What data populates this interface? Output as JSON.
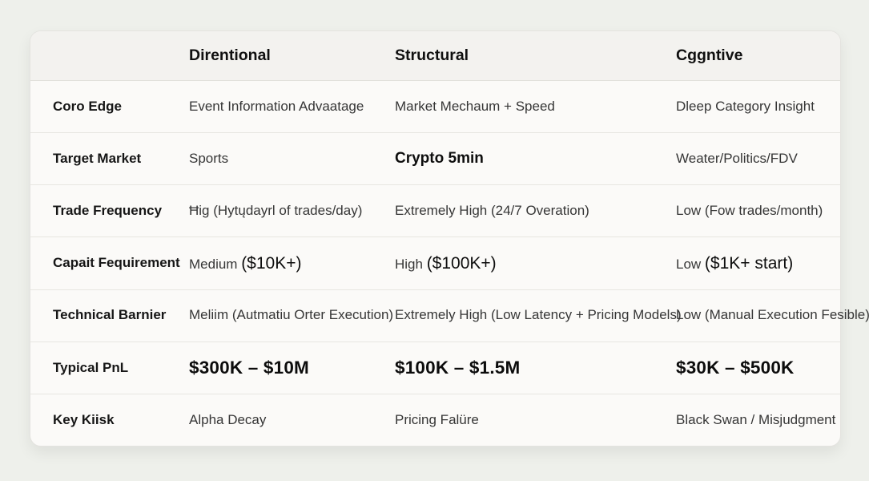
{
  "colors": {
    "page_bg": "#eef0eb",
    "card_bg": "#fbfaf8",
    "header_bg": "#f3f2ef",
    "border": "#e4e3df",
    "label_text": "#161616",
    "cell_text": "#363636"
  },
  "chart_data": {
    "type": "table",
    "title": "",
    "columns": [
      "",
      "Direntional",
      "Structural",
      "Cggntive"
    ],
    "rows": [
      [
        "Coro Edge",
        "Event Information Advaatage",
        "Market Mechaum + Speed",
        "Dleep Category Insight"
      ],
      [
        "Target Market",
        "Sports",
        "Crypto 5min",
        "Weater/Politics/FDV"
      ],
      [
        "Trade Frequency",
        "Ħig (Hytųdayrl of trades/day)",
        "Extremely High (24/7 Overation)",
        "Low (Fow trades/month)"
      ],
      [
        "Capait Fequirement",
        "Medium ($10K+)",
        "High ($100K+)",
        "Low ($1K+ start)"
      ],
      [
        "Technical Barnier",
        "Meliim (Autmatiu Orter Execution)",
        "Extremely High (Low Latency + Pricing Models)",
        "Low (Manual Execution Fesible)"
      ],
      [
        "Typical PnL",
        "$300K – $10M",
        "$100K – $1.5M",
        "$30K – $500K"
      ],
      [
        "Key Kiisk",
        "Alpha Decay",
        "Pricing Falüre",
        "Black Swan / Misjudgment"
      ]
    ]
  },
  "display": {
    "capital_split": [
      {
        "pre": "Medium ",
        "big": "($10K+)"
      },
      {
        "pre": "High ",
        "big": "($100K+)"
      },
      {
        "pre": "Low ",
        "big": "($1K+ start)"
      }
    ]
  }
}
